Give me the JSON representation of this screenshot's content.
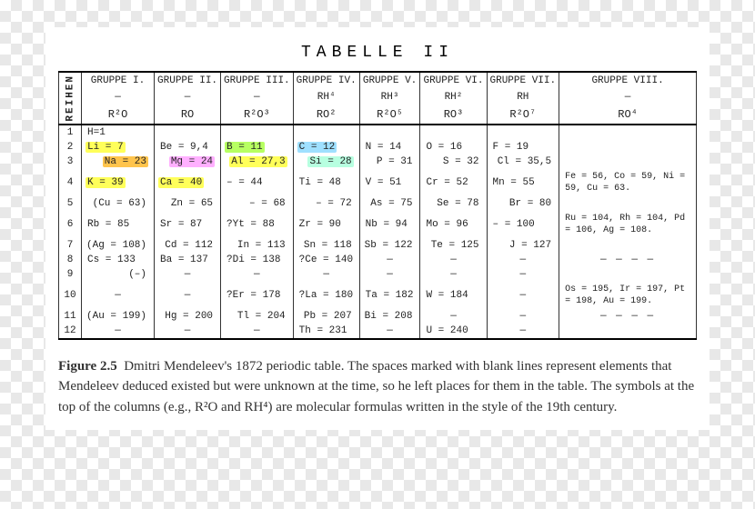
{
  "title": "TABELLE  II",
  "row_label": "REIHEN",
  "groups": {
    "g1": {
      "name": "GRUPPE I.",
      "dash": "—",
      "formula": "R²O"
    },
    "g2": {
      "name": "GRUPPE II.",
      "dash": "—",
      "formula": "RO"
    },
    "g3": {
      "name": "GRUPPE III.",
      "dash": "—",
      "formula": "R²O³"
    },
    "g4": {
      "name": "GRUPPE IV.",
      "sub": "RH⁴",
      "formula": "RO²"
    },
    "g5": {
      "name": "GRUPPE V.",
      "sub": "RH³",
      "formula": "R²O⁵"
    },
    "g6": {
      "name": "GRUPPE VI.",
      "sub": "RH²",
      "formula": "RO³"
    },
    "g7": {
      "name": "GRUPPE VII.",
      "sub": "RH",
      "formula": "R²O⁷"
    },
    "g8": {
      "name": "GRUPPE VIII.",
      "dash": "—",
      "formula": "RO⁴"
    }
  },
  "rows": {
    "r1": "1",
    "r2": "2",
    "r3": "3",
    "r4": "4",
    "r5": "5",
    "r6": "6",
    "r7": "7",
    "r8": "8",
    "r9": "9",
    "r10": "10",
    "r11": "11",
    "r12": "12"
  },
  "cells": {
    "r1g1": "H=1",
    "r2g1": "Li = 7",
    "r2g2": "Be = 9,4",
    "r2g3": "B = 11",
    "r2g4": "C = 12",
    "r2g5": "N = 14",
    "r2g6": "O = 16",
    "r2g7": "F = 19",
    "r3g1": "Na = 23",
    "r3g2": "Mg = 24",
    "r3g3": "Al = 27,3",
    "r3g4": "Si = 28",
    "r3g5": "P = 31",
    "r3g6": "S = 32",
    "r3g7": "Cl = 35,5",
    "r4g1": "K = 39",
    "r4g2": "Ca = 40",
    "r4g3": "– = 44",
    "r4g4": "Ti = 48",
    "r4g5": "V = 51",
    "r4g6": "Cr = 52",
    "r4g7": "Mn = 55",
    "r4g8": "Fe = 56, Co = 59, Ni = 59, Cu = 63.",
    "r5g1": "(Cu = 63)",
    "r5g2": "Zn = 65",
    "r5g3": "– = 68",
    "r5g4": "– = 72",
    "r5g5": "As = 75",
    "r5g6": "Se = 78",
    "r5g7": "Br = 80",
    "r6g1": "Rb = 85",
    "r6g2": "Sr = 87",
    "r6g3": "?Yt = 88",
    "r6g4": "Zr = 90",
    "r6g5": "Nb = 94",
    "r6g6": "Mo = 96",
    "r6g7": "– = 100",
    "r6g8": "Ru = 104, Rh = 104, Pd = 106, Ag = 108.",
    "r7g1": "(Ag = 108)",
    "r7g2": "Cd = 112",
    "r7g3": "In = 113",
    "r7g4": "Sn = 118",
    "r7g5": "Sb = 122",
    "r7g6": "Te = 125",
    "r7g7": "J = 127",
    "r8g1": "Cs = 133",
    "r8g2": "Ba = 137",
    "r8g3": "?Di = 138",
    "r8g4": "?Ce = 140",
    "r8g5": "—",
    "r8g6": "—",
    "r8g7": "—",
    "r8g8": "— — — —",
    "r9g1": "(–)",
    "r9g2": "—",
    "r9g3": "—",
    "r9g4": "—",
    "r9g5": "—",
    "r9g6": "—",
    "r9g7": "—",
    "r10g1": "—",
    "r10g2": "—",
    "r10g3": "?Er = 178",
    "r10g4": "?La = 180",
    "r10g5": "Ta = 182",
    "r10g6": "W = 184",
    "r10g7": "—",
    "r10g8": "Os = 195, Ir = 197, Pt = 198, Au = 199.",
    "r11g1": "(Au = 199)",
    "r11g2": "Hg = 200",
    "r11g3": "Tl = 204",
    "r11g4": "Pb = 207",
    "r11g5": "Bi = 208",
    "r11g6": "—",
    "r11g7": "—",
    "r11g8": "— — — —",
    "r12g1": "—",
    "r12g2": "—",
    "r12g3": "—",
    "r12g4": "Th = 231",
    "r12g5": "—",
    "r12g6": "U = 240",
    "r12g7": "—"
  },
  "highlights": {
    "r2g1": "#ffff5a",
    "r3g1": "#ffc44d",
    "r4g1": "#ffff5a",
    "r3g2": "#ffb0ff",
    "r4g2": "#ffff5a",
    "r2g3": "#b7ff62",
    "r3g3": "#ffff5a",
    "r2g4": "#9fe0ff",
    "r3g4": "#b7ffe0"
  },
  "caption": {
    "label": "Figure 2.5",
    "text": "Dmitri Mendeleev's 1872 periodic table. The spaces marked with blank lines represent elements that Mendeleev deduced existed but were unknown at the time, so he left places for them in the table. The symbols at the top of the columns (e.g., R²O and RH⁴) are molecular formulas written in the style of the 19th century."
  },
  "style": {
    "page_bg": "#ffffff",
    "border_color": "#000000",
    "mono_font_size": 11,
    "caption_font_size": 15
  }
}
